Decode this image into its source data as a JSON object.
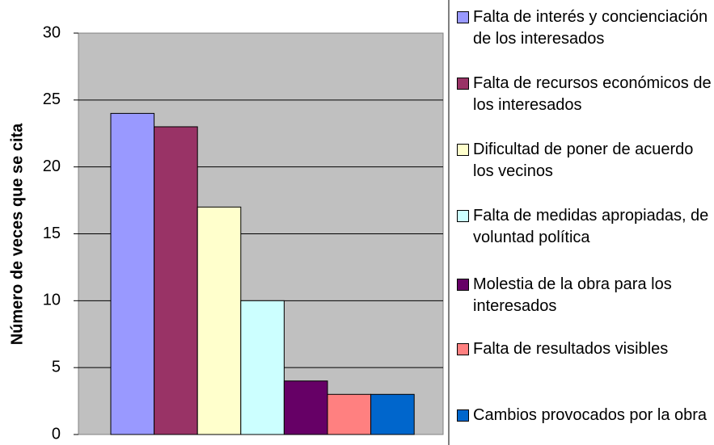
{
  "chart_data": {
    "type": "bar",
    "ylabel": "Número de veces que se cita",
    "categories": [
      null
    ],
    "series": [
      {
        "name": "Falta de interés y concienciación de los interesados",
        "color": "#9999ff",
        "values": [
          24
        ]
      },
      {
        "name": "Falta de recursos económicos de los interesados",
        "color": "#993366",
        "values": [
          23
        ]
      },
      {
        "name": "Dificultad de poner de acuerdo los vecinos",
        "color": "#ffffcc",
        "values": [
          17
        ]
      },
      {
        "name": "Falta de medidas apropiadas, de voluntad política",
        "color": "#ccffff",
        "values": [
          10
        ]
      },
      {
        "name": "Molestia de la obra para los interesados",
        "color": "#660066",
        "values": [
          4
        ]
      },
      {
        "name": "Falta de resultados visibles",
        "color": "#ff8080",
        "values": [
          3
        ]
      },
      {
        "name": "Cambios provocados por la obra",
        "color": "#0066cc",
        "values": [
          3
        ]
      }
    ],
    "ylim": [
      0,
      30
    ],
    "yticks": [
      0,
      5,
      10,
      15,
      20,
      25,
      30
    ],
    "grid": true,
    "legend": "right"
  }
}
